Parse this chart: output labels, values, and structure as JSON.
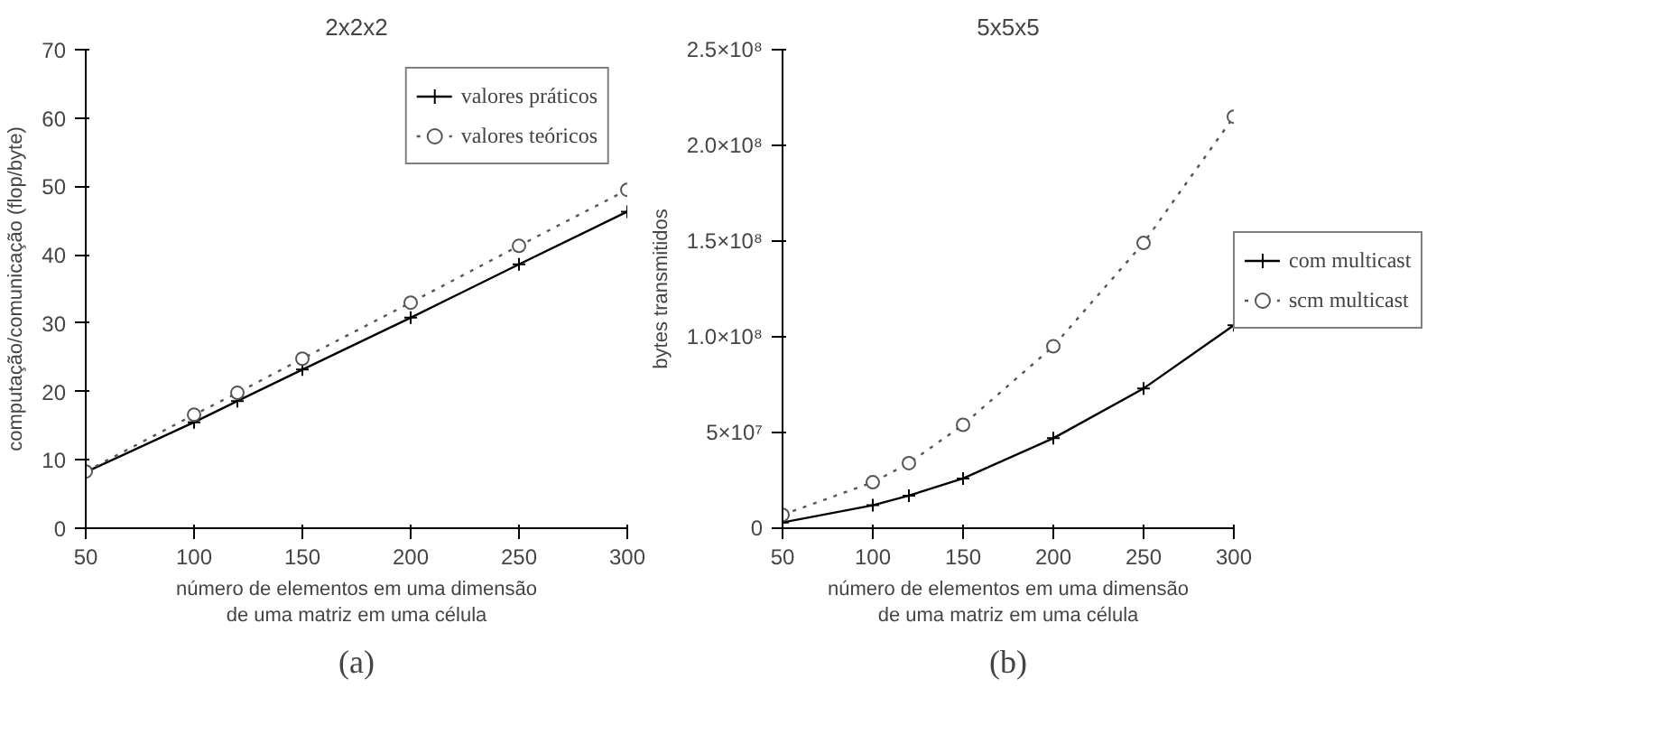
{
  "chart_data": [
    {
      "type": "line",
      "title": "2x2x2",
      "xlabel": "número de elementos em uma dimensão\nde uma matriz em uma célula",
      "ylabel": "computação/comunicação (flop/byte)",
      "x": [
        50,
        100,
        120,
        150,
        200,
        250,
        300
      ],
      "xlim": [
        50,
        300
      ],
      "xticks": [
        50,
        100,
        150,
        200,
        250,
        300
      ],
      "ylim": [
        0,
        70
      ],
      "yticks": [
        0,
        10,
        20,
        30,
        40,
        50,
        60,
        70
      ],
      "grid": false,
      "legend": "top right",
      "annotations": [
        "(a)"
      ],
      "series": [
        {
          "name": "valores práticos",
          "color": "#000000",
          "marker": "cross",
          "line_style": "solid",
          "values": [
            8.2,
            15.5,
            18.6,
            23.2,
            30.8,
            38.6,
            46.3
          ]
        },
        {
          "name": "valores teóricos",
          "color": "#555555",
          "marker": "circle",
          "line_style": "dotted",
          "values": [
            8.3,
            16.6,
            19.8,
            24.8,
            33.0,
            41.3,
            49.5
          ]
        }
      ]
    },
    {
      "type": "line",
      "title": "5x5x5",
      "xlabel": "número de elementos em uma dimensão\nde uma matriz em uma célula",
      "ylabel": "bytes transmitidos",
      "x": [
        50,
        100,
        120,
        150,
        200,
        250,
        300
      ],
      "xlim": [
        50,
        300
      ],
      "xticks": [
        50,
        100,
        150,
        200,
        250,
        300
      ],
      "ylim": [
        0,
        250000000
      ],
      "yticks": [
        {
          "value": 0,
          "label": "0"
        },
        {
          "value": 50000000,
          "label": "5×10⁷"
        },
        {
          "value": 100000000,
          "label": "1.0×10⁸"
        },
        {
          "value": 150000000,
          "label": "1.5×10⁸"
        },
        {
          "value": 200000000,
          "label": "2.0×10⁸"
        },
        {
          "value": 250000000,
          "label": "2.5×10⁸"
        }
      ],
      "grid": false,
      "legend": "right",
      "annotations": [
        "(b)"
      ],
      "series": [
        {
          "name": "com multicast",
          "color": "#000000",
          "marker": "cross",
          "line_style": "solid",
          "values": [
            3000000,
            12000000,
            17000000,
            26000000,
            47000000,
            73000000,
            106000000
          ]
        },
        {
          "name": "scm multicast",
          "color": "#555555",
          "marker": "circle",
          "line_style": "dotted",
          "values": [
            7000000,
            24000000,
            34000000,
            54000000,
            95000000,
            149000000,
            215000000
          ]
        }
      ]
    }
  ]
}
